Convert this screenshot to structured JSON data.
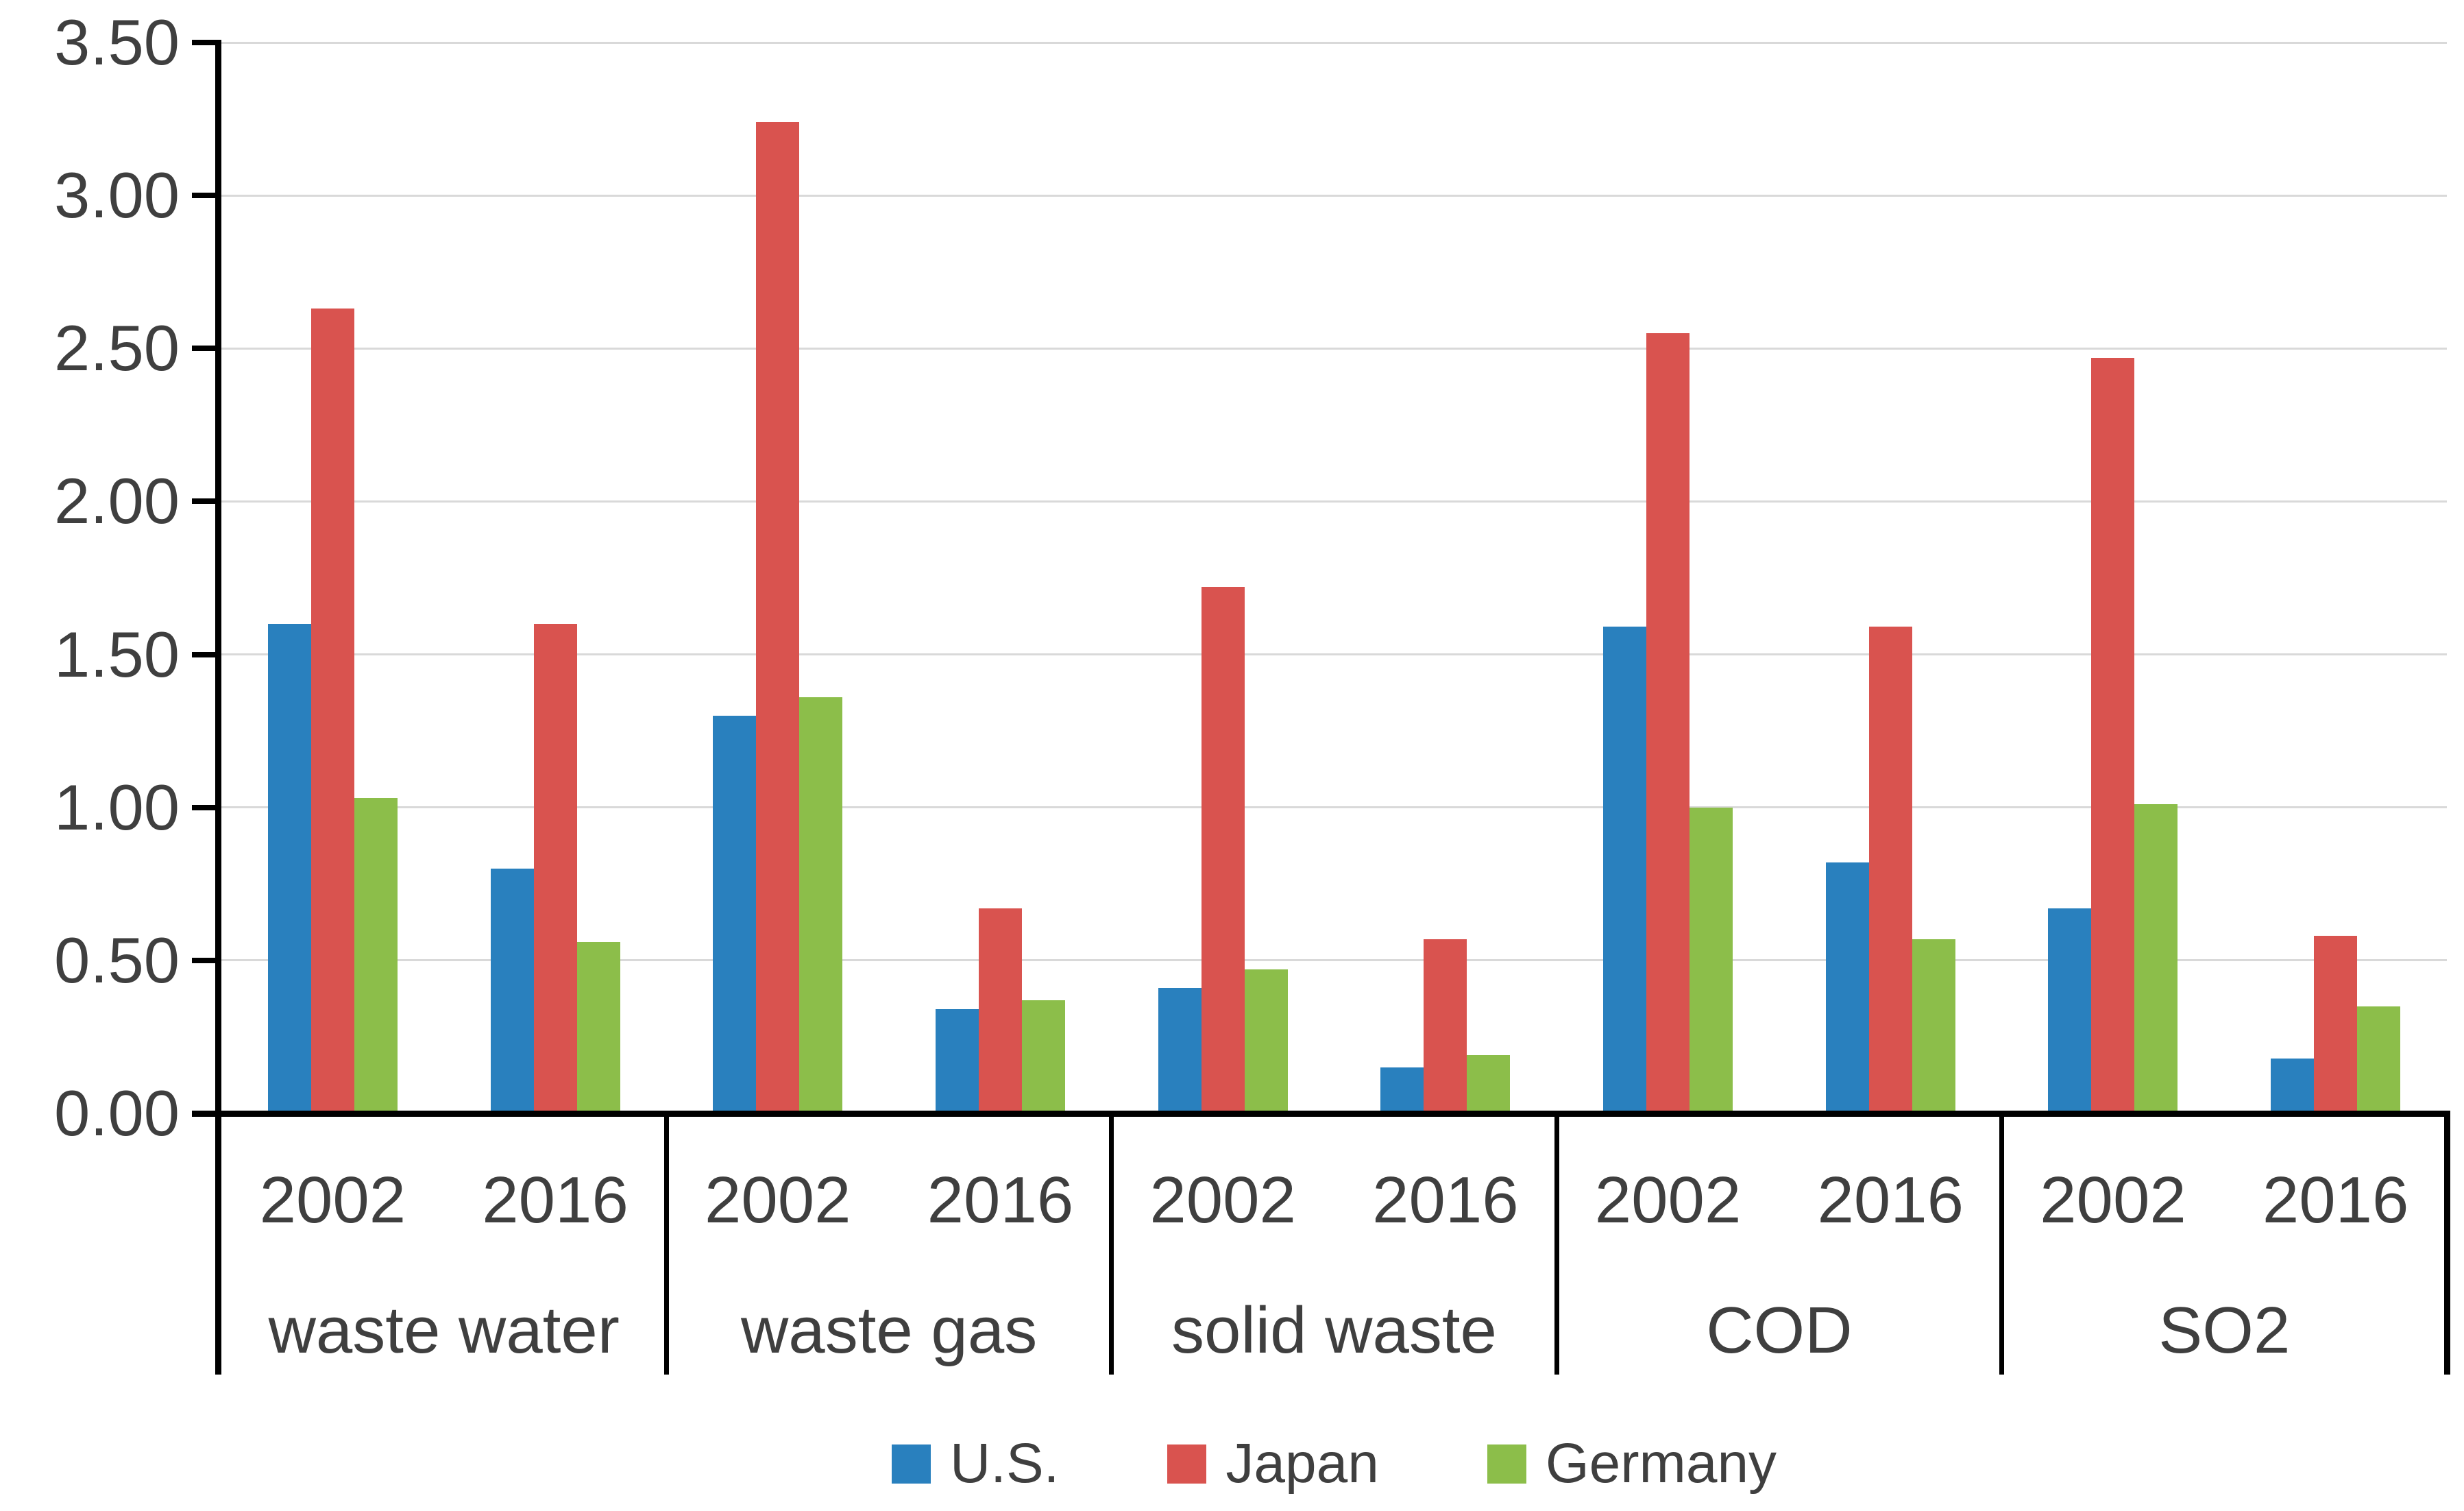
{
  "chart_data": {
    "type": "bar",
    "title": "",
    "xlabel": "",
    "ylabel": "",
    "ylim": [
      0,
      3.5
    ],
    "ytick_step": 0.5,
    "ytick_labels": [
      "0.00",
      "0.50",
      "1.00",
      "1.50",
      "2.00",
      "2.50",
      "3.00",
      "3.50"
    ],
    "grid": true,
    "legend_position": "bottom",
    "categories": [
      "waste water",
      "waste gas",
      "solid waste",
      "COD",
      "SO2"
    ],
    "subcategories": [
      "2002",
      "2016"
    ],
    "series": [
      {
        "name": "U.S.",
        "color": "#2980BE",
        "values": [
          [
            1.6,
            0.8
          ],
          [
            1.3,
            0.34
          ],
          [
            0.41,
            0.15
          ],
          [
            1.59,
            0.82
          ],
          [
            0.67,
            0.18
          ]
        ]
      },
      {
        "name": "Japan",
        "color": "#D9534F",
        "values": [
          [
            2.63,
            1.6
          ],
          [
            3.24,
            0.67
          ],
          [
            1.72,
            0.57
          ],
          [
            2.55,
            1.59
          ],
          [
            2.47,
            0.58
          ]
        ]
      },
      {
        "name": "Germany",
        "color": "#8CBE4A",
        "values": [
          [
            1.03,
            0.56
          ],
          [
            1.36,
            0.37
          ],
          [
            0.47,
            0.19
          ],
          [
            1.0,
            0.57
          ],
          [
            1.01,
            0.35
          ]
        ]
      }
    ]
  },
  "colors": {
    "axis": "#000000",
    "gridline": "#D9D9D9",
    "text": "#3F3F3F",
    "background": "#FFFFFF"
  }
}
